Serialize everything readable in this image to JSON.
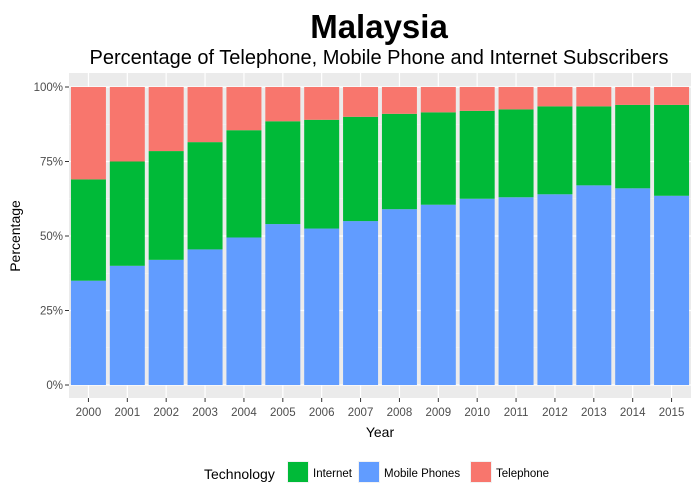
{
  "chart_data": {
    "type": "bar",
    "stacked": true,
    "title": "Malaysia",
    "subtitle": "Percentage of Telephone, Mobile Phone and Internet Subscribers",
    "xlabel": "Year",
    "ylabel": "Percentage",
    "ylim": [
      0,
      100
    ],
    "yticks": [
      "0%",
      "25%",
      "50%",
      "75%",
      "100%"
    ],
    "categories": [
      "2000",
      "2001",
      "2002",
      "2003",
      "2004",
      "2005",
      "2006",
      "2007",
      "2008",
      "2009",
      "2010",
      "2011",
      "2012",
      "2013",
      "2014",
      "2015"
    ],
    "series": [
      {
        "name": "Mobile Phones",
        "color": "#619cff",
        "values": [
          35,
          40,
          42,
          45.5,
          49.5,
          54,
          52.5,
          55,
          59,
          60.5,
          62.5,
          63,
          64,
          67,
          66,
          63.5
        ]
      },
      {
        "name": "Internet",
        "color": "#00ba38",
        "values": [
          34,
          35,
          36.5,
          36,
          36,
          34.5,
          36.5,
          35,
          32,
          31,
          29.5,
          29.5,
          29.5,
          26.5,
          28,
          30.5
        ]
      },
      {
        "name": "Telephone",
        "color": "#f8766d",
        "values": [
          31,
          25,
          21.5,
          18.5,
          14.5,
          11.5,
          11,
          10,
          9,
          8.5,
          8,
          7.5,
          6.5,
          6.5,
          6,
          6
        ]
      }
    ],
    "legend": {
      "title": "Technology",
      "position": "bottom",
      "order": [
        "Internet",
        "Mobile Phones",
        "Telephone"
      ]
    },
    "panel_background": "#ebebeb",
    "grid": true
  }
}
